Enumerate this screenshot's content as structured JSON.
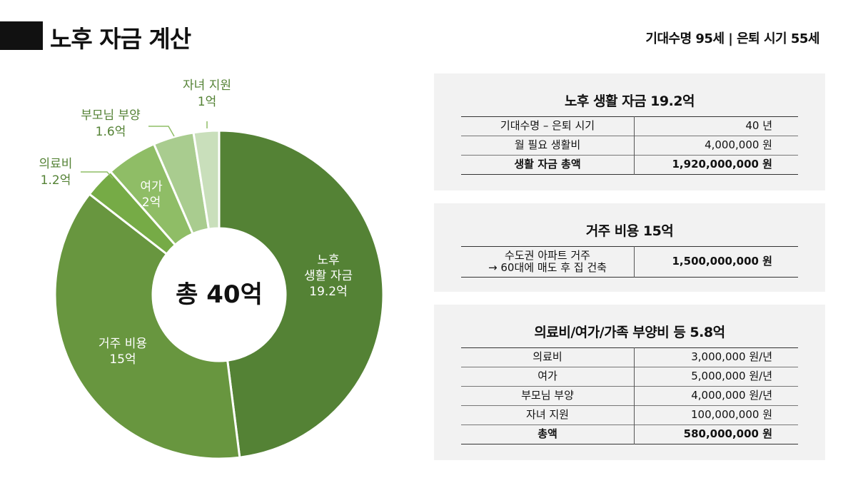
{
  "header": {
    "title": "노후 자금 계산",
    "subtitle": "기대수명 95세 | 은퇴 시기 55세"
  },
  "chart_data": {
    "type": "pie",
    "center_label": "총 40억",
    "slices": [
      {
        "label_lines": [
          "노후",
          "생활 자금",
          "19.2억"
        ],
        "value": 19.2,
        "color": "#548235",
        "label_inside": true
      },
      {
        "label_lines": [
          "거주 비용",
          "15억"
        ],
        "value": 15,
        "color": "#68963f",
        "label_inside": true
      },
      {
        "label_lines": [
          "의료비",
          "1.2억"
        ],
        "value": 1.2,
        "color": "#76ab46",
        "label_inside": false
      },
      {
        "label_lines": [
          "여가",
          "2억"
        ],
        "value": 2,
        "color": "#8fbd66",
        "label_inside": true
      },
      {
        "label_lines": [
          "부모님 부양",
          "1.6억"
        ],
        "value": 1.6,
        "color": "#a9cc8f",
        "label_inside": false
      },
      {
        "label_lines": [
          "자녀 지원",
          "1억"
        ],
        "value": 1,
        "color": "#c9dfbb",
        "label_inside": false
      }
    ]
  },
  "panels": [
    {
      "title": "노후 생활 자금  19.2억",
      "rows": [
        {
          "label": "기대수명 – 은퇴 시기",
          "value": "40 년",
          "bold": false
        },
        {
          "label": "월 필요 생활비",
          "value": "4,000,000 원",
          "bold": false
        },
        {
          "label": "생활 자금 총액",
          "value": "1,920,000,000 원",
          "bold": true
        }
      ]
    },
    {
      "title": "거주 비용  15억",
      "rows": [
        {
          "label": "수도권 아파트 거주\n→ 60대에 매도 후 집 건축",
          "value": "1,500,000,000 원",
          "bold": false
        }
      ]
    },
    {
      "title": "의료비/여가/가족 부양비 등  5.8억",
      "rows": [
        {
          "label": "의료비",
          "value": "3,000,000 원/년",
          "bold": false
        },
        {
          "label": "여가",
          "value": "5,000,000 원/년",
          "bold": false
        },
        {
          "label": "부모님 부양",
          "value": "4,000,000 원/년",
          "bold": false
        },
        {
          "label": "자녀 지원",
          "value": "100,000,000 원",
          "bold": false
        },
        {
          "label": "총액",
          "value": "580,000,000 원",
          "bold": true
        }
      ]
    }
  ]
}
